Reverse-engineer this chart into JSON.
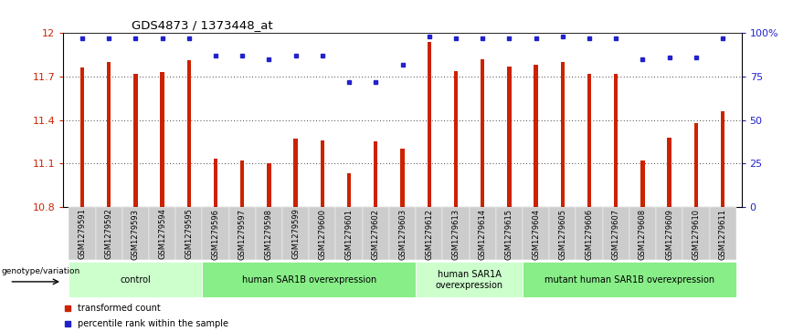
{
  "title": "GDS4873 / 1373448_at",
  "samples": [
    "GSM1279591",
    "GSM1279592",
    "GSM1279593",
    "GSM1279594",
    "GSM1279595",
    "GSM1279596",
    "GSM1279597",
    "GSM1279598",
    "GSM1279599",
    "GSM1279600",
    "GSM1279601",
    "GSM1279602",
    "GSM1279603",
    "GSM1279612",
    "GSM1279613",
    "GSM1279614",
    "GSM1279615",
    "GSM1279604",
    "GSM1279605",
    "GSM1279606",
    "GSM1279607",
    "GSM1279608",
    "GSM1279609",
    "GSM1279610",
    "GSM1279611"
  ],
  "bar_values": [
    11.76,
    11.8,
    11.72,
    11.73,
    11.81,
    11.13,
    11.12,
    11.1,
    11.27,
    11.26,
    11.03,
    11.25,
    11.2,
    11.94,
    11.74,
    11.82,
    11.77,
    11.78,
    11.8,
    11.72,
    11.72,
    11.12,
    11.28,
    11.38,
    11.46
  ],
  "percentile_values": [
    97,
    97,
    97,
    97,
    97,
    87,
    87,
    85,
    87,
    87,
    72,
    72,
    82,
    98,
    97,
    97,
    97,
    97,
    98,
    97,
    97,
    85,
    86,
    86,
    97
  ],
  "bar_color": "#cc2200",
  "dot_color": "#2222cc",
  "ylim_left": [
    10.8,
    12.0
  ],
  "ylim_right": [
    0,
    100
  ],
  "yticks_left": [
    10.8,
    11.1,
    11.4,
    11.7,
    12.0
  ],
  "ytick_labels_left": [
    "10.8",
    "11.1",
    "11.4",
    "11.7",
    "12"
  ],
  "yticks_right": [
    0,
    25,
    50,
    75,
    100
  ],
  "ytick_labels_right": [
    "0",
    "25",
    "50",
    "75",
    "100%"
  ],
  "groups": [
    {
      "label": "control",
      "start": 0,
      "end": 5,
      "color": "#ccffcc"
    },
    {
      "label": "human SAR1B overexpression",
      "start": 5,
      "end": 13,
      "color": "#88ee88"
    },
    {
      "label": "human SAR1A\noverexpression",
      "start": 13,
      "end": 17,
      "color": "#ccffcc"
    },
    {
      "label": "mutant human SAR1B overexpression",
      "start": 17,
      "end": 25,
      "color": "#88ee88"
    }
  ],
  "legend_label_bar": "transformed count",
  "legend_label_dot": "percentile rank within the sample",
  "genotype_label": "genotype/variation",
  "xtick_bg_color": "#cccccc",
  "bar_width": 0.15
}
